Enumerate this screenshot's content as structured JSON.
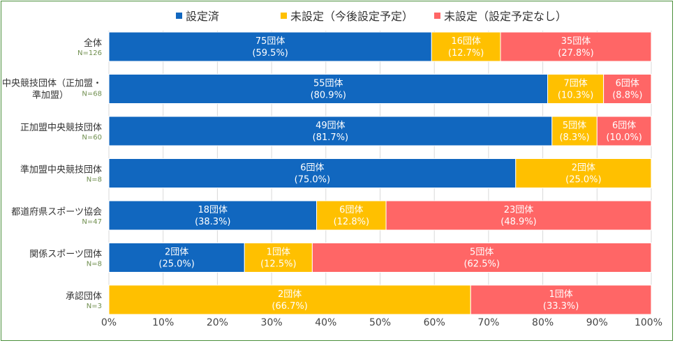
{
  "chart_data": {
    "type": "bar",
    "orientation": "horizontal",
    "stacked": true,
    "title": "",
    "xlabel": "",
    "ylabel": "",
    "xlim": [
      0,
      100
    ],
    "grid": true,
    "legend_position": "top",
    "x_ticks": [
      "0%",
      "10%",
      "20%",
      "30%",
      "40%",
      "50%",
      "60%",
      "70%",
      "80%",
      "90%",
      "100%"
    ],
    "categories": [
      {
        "name_lines": [
          "全体"
        ],
        "n": "N=126"
      },
      {
        "name_lines": [
          "中央競技団体（正加盟・",
          "準加盟）"
        ],
        "n": "N=68"
      },
      {
        "name_lines": [
          "正加盟中央競技団体"
        ],
        "n": "N=60"
      },
      {
        "name_lines": [
          "準加盟中央競技団体"
        ],
        "n": "N=8"
      },
      {
        "name_lines": [
          "都道府県スポーツ協会"
        ],
        "n": "N=47"
      },
      {
        "name_lines": [
          "関係スポーツ団体"
        ],
        "n": "N=8"
      },
      {
        "name_lines": [
          "承認団体"
        ],
        "n": "N=3"
      }
    ],
    "series": [
      {
        "name": "設定済",
        "color": "#1167bf",
        "values": [
          59.5,
          80.9,
          81.7,
          75.0,
          38.3,
          25.0,
          0
        ],
        "counts": [
          "75団体",
          "55団体",
          "49団体",
          "6団体",
          "18団体",
          "2団体",
          ""
        ],
        "pct_labels": [
          "(59.5%)",
          "(80.9%)",
          "(81.7%)",
          "(75.0%)",
          "(38.3%)",
          "(25.0%)",
          ""
        ]
      },
      {
        "name": "未設定（今後設定予定）",
        "color": "#ffc000",
        "values": [
          12.7,
          10.3,
          8.3,
          25.0,
          12.8,
          12.5,
          66.7
        ],
        "counts": [
          "16団体",
          "7団体",
          "5団体",
          "2団体",
          "6団体",
          "1団体",
          "2団体"
        ],
        "pct_labels": [
          "(12.7%)",
          "(10.3%)",
          "(8.3%)",
          "(25.0%)",
          "(12.8%)",
          "(12.5%)",
          "(66.7%)"
        ]
      },
      {
        "name": "未設定（設定予定なし）",
        "color": "#ff6666",
        "values": [
          27.8,
          8.8,
          10.0,
          0,
          48.9,
          62.5,
          33.3
        ],
        "counts": [
          "35団体",
          "6団体",
          "6団体",
          "",
          "23団体",
          "5団体",
          "1団体"
        ],
        "pct_labels": [
          "(27.8%)",
          "(8.8%)",
          "(10.0%)",
          "",
          "(48.9%)",
          "(62.5%)",
          "(33.3%)"
        ]
      }
    ]
  },
  "colors": {
    "gridline": "#d9d9d9",
    "frame_border": "#4a8f3a"
  }
}
